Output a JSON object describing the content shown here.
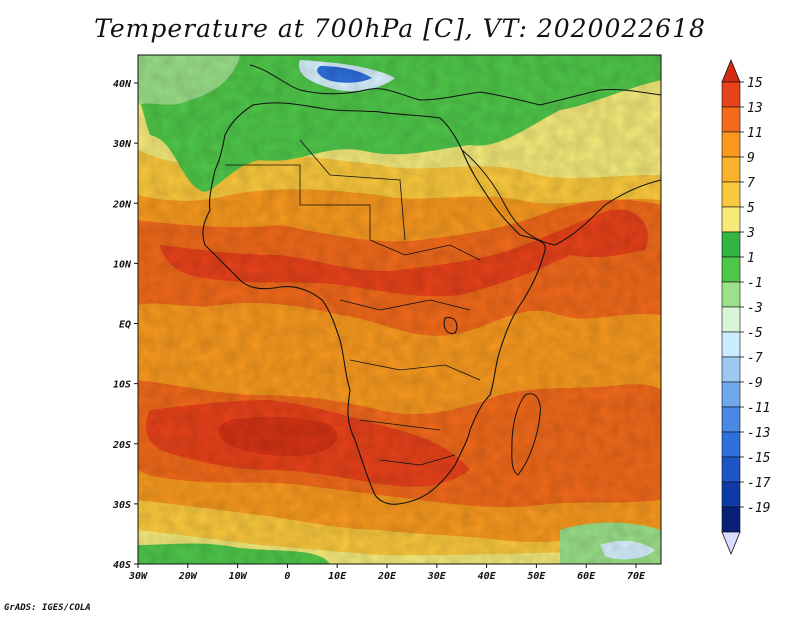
{
  "title": "Temperature at 700hPa [C], VT: 2020022618",
  "credit": "GrADS: IGES/COLA",
  "map": {
    "lat_labels": [
      "40N",
      "30N",
      "20N",
      "10N",
      "EQ",
      "10S",
      "20S",
      "30S",
      "40S"
    ],
    "lon_labels": [
      "30W",
      "20W",
      "10W",
      "0",
      "10E",
      "20E",
      "30E",
      "40E",
      "50E",
      "60E",
      "70E"
    ],
    "colors": {
      "warm_core": "#e8421a",
      "warm": "#f26a1b",
      "mid": "#f99a1f",
      "cool": "#fbc93d",
      "pale": "#f6eb7a",
      "green": "#4fc84a",
      "light_green": "#9be08a",
      "pale_blue": "#d8f2ff",
      "blue": "#2e6fde",
      "coast": "#111111"
    }
  },
  "colorbar": {
    "labels": [
      "15",
      "13",
      "11",
      "9",
      "7",
      "5",
      "3",
      "1",
      "-1",
      "-3",
      "-5",
      "-7",
      "-9",
      "-11",
      "-13",
      "-15",
      "-17",
      "-19"
    ],
    "colors": [
      "#e8421a",
      "#f26a1b",
      "#f99a1f",
      "#fbb32e",
      "#fbc93d",
      "#f6eb7a",
      "#33b641",
      "#4fc84a",
      "#9be08a",
      "#d8f5d8",
      "#c9ecff",
      "#9ccaf5",
      "#6fa8ec",
      "#4a88e5",
      "#2e6fde",
      "#1d55c7",
      "#0e3aa8",
      "#0a1f78"
    ],
    "top_color": "#d52b12",
    "bottom_color": "#d8dcff"
  }
}
